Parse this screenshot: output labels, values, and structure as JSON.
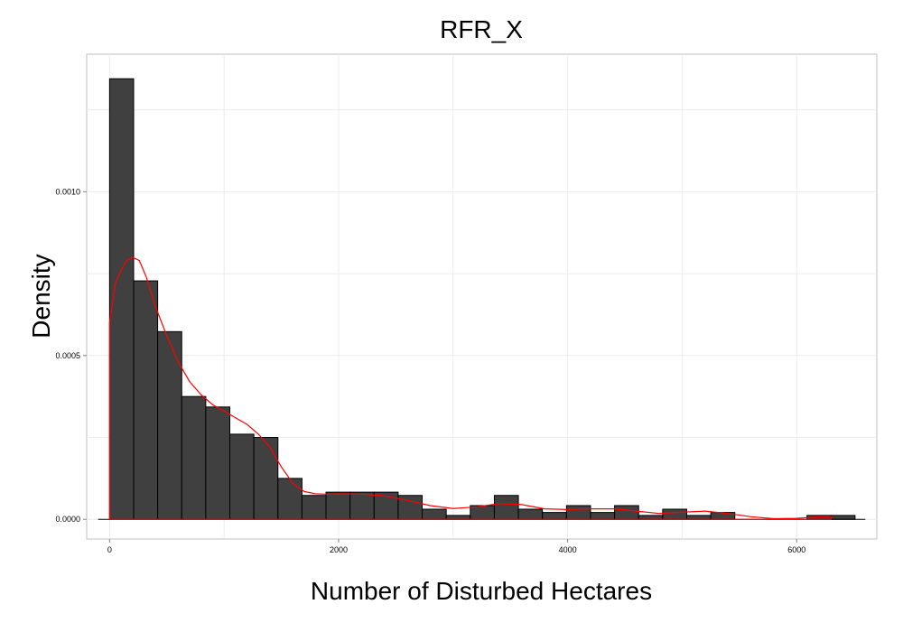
{
  "chart_data": {
    "type": "bar",
    "subtype": "histogram-with-density",
    "title": "RFR_X",
    "xlabel": "Number of Disturbed Hectares",
    "ylabel": "Density",
    "xlim": [
      -200,
      6700
    ],
    "ylim": [
      -6e-05,
      0.00142
    ],
    "x_ticks": [
      0,
      2000,
      4000,
      6000
    ],
    "x_tick_labels": [
      "0",
      "2000",
      "4000",
      "6000"
    ],
    "y_ticks": [
      0.0,
      0.0005,
      0.001
    ],
    "y_tick_labels": [
      "0.0000",
      "0.0005",
      "0.0010"
    ],
    "grid": true,
    "bin_width": 210,
    "bins": [
      {
        "x0": 0,
        "x1": 210,
        "value": 0.001345
      },
      {
        "x0": 210,
        "x1": 420,
        "value": 0.000728
      },
      {
        "x0": 420,
        "x1": 630,
        "value": 0.000573
      },
      {
        "x0": 630,
        "x1": 840,
        "value": 0.000375
      },
      {
        "x0": 840,
        "x1": 1050,
        "value": 0.000343
      },
      {
        "x0": 1050,
        "x1": 1260,
        "value": 0.00026
      },
      {
        "x0": 1260,
        "x1": 1470,
        "value": 0.00025
      },
      {
        "x0": 1470,
        "x1": 1680,
        "value": 0.000125
      },
      {
        "x0": 1680,
        "x1": 1890,
        "value": 7.3e-05
      },
      {
        "x0": 1890,
        "x1": 2100,
        "value": 8.3e-05
      },
      {
        "x0": 2100,
        "x1": 2310,
        "value": 8.3e-05
      },
      {
        "x0": 2310,
        "x1": 2520,
        "value": 8.3e-05
      },
      {
        "x0": 2520,
        "x1": 2730,
        "value": 7.3e-05
      },
      {
        "x0": 2730,
        "x1": 2940,
        "value": 3.1e-05
      },
      {
        "x0": 2940,
        "x1": 3150,
        "value": 1.2e-05
      },
      {
        "x0": 3150,
        "x1": 3360,
        "value": 4.2e-05
      },
      {
        "x0": 3360,
        "x1": 3570,
        "value": 7.3e-05
      },
      {
        "x0": 3570,
        "x1": 3780,
        "value": 3.1e-05
      },
      {
        "x0": 3780,
        "x1": 3990,
        "value": 2.1e-05
      },
      {
        "x0": 3990,
        "x1": 4200,
        "value": 4.2e-05
      },
      {
        "x0": 4200,
        "x1": 4410,
        "value": 2.1e-05
      },
      {
        "x0": 4410,
        "x1": 4620,
        "value": 4.2e-05
      },
      {
        "x0": 4620,
        "x1": 4830,
        "value": 1.2e-05
      },
      {
        "x0": 4830,
        "x1": 5040,
        "value": 3.1e-05
      },
      {
        "x0": 5040,
        "x1": 5250,
        "value": 1.2e-05
      },
      {
        "x0": 5250,
        "x1": 5460,
        "value": 2.1e-05
      },
      {
        "x0": 6090,
        "x1": 6300,
        "value": 1.2e-05
      },
      {
        "x0": 6300,
        "x1": 6510,
        "value": 1.2e-05
      }
    ],
    "density_curve": {
      "x": [
        0,
        50,
        100,
        150,
        200,
        260,
        320,
        400,
        500,
        600,
        700,
        800,
        900,
        1000,
        1100,
        1200,
        1300,
        1400,
        1500,
        1600,
        1700,
        1800,
        1900,
        2000,
        2200,
        2400,
        2600,
        2800,
        3000,
        3200,
        3400,
        3600,
        3800,
        4000,
        4200,
        4400,
        4600,
        4800,
        5000,
        5200,
        5400,
        5600,
        5800,
        6000,
        6200,
        6300
      ],
      "y": [
        0.0006,
        0.00072,
        0.00076,
        0.00079,
        0.0008,
        0.00079,
        0.00074,
        0.00065,
        0.00056,
        0.00048,
        0.00042,
        0.00038,
        0.00035,
        0.00033,
        0.00031,
        0.00029,
        0.00026,
        0.00022,
        0.00016,
        0.00011,
        8.5e-05,
        7.8e-05,
        7.7e-05,
        7.8e-05,
        7.7e-05,
        7.2e-05,
        5.8e-05,
        4.2e-05,
        3.3e-05,
        3.8e-05,
        4.8e-05,
        4.5e-05,
        3.2e-05,
        3e-05,
        3.2e-05,
        3.2e-05,
        2.5e-05,
        1.8e-05,
        2.2e-05,
        2.5e-05,
        1.8e-05,
        8e-06,
        2e-06,
        3e-06,
        8e-06,
        8e-06
      ]
    },
    "colors": {
      "bar_fill": "#404040",
      "bar_stroke": "#000000",
      "density_line": "#ff0000",
      "grid": "#ececec",
      "panel_border": "#bfbfbf",
      "baseline": "#000000"
    }
  }
}
